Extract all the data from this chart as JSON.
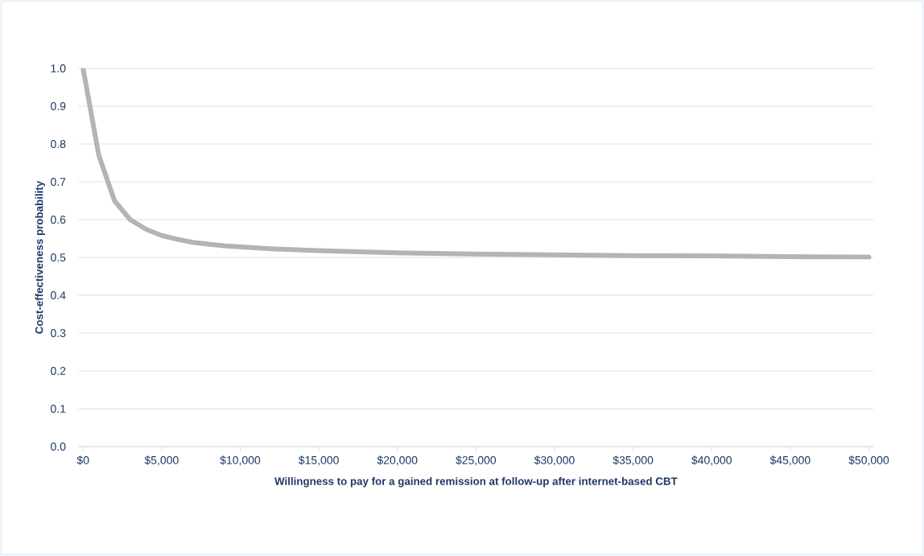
{
  "chart_data": {
    "type": "line",
    "xlabel": "Willingness to pay for a gained remission at follow-up after internet-based CBT",
    "ylabel": "Cost-effectiveness probability",
    "x": [
      0,
      1000,
      2000,
      3000,
      4000,
      5000,
      6000,
      7000,
      8000,
      9000,
      10000,
      12000,
      15000,
      20000,
      25000,
      30000,
      35000,
      40000,
      45000,
      50000
    ],
    "series": [
      {
        "color": "#b4b4b4",
        "values": [
          1.0,
          0.77,
          0.65,
          0.6,
          0.575,
          0.558,
          0.548,
          0.54,
          0.535,
          0.531,
          0.528,
          0.523,
          0.518,
          0.512,
          0.509,
          0.507,
          0.505,
          0.504,
          0.502,
          0.501
        ]
      }
    ],
    "xlim": [
      -300,
      50300
    ],
    "ylim": [
      0,
      1.0
    ],
    "xticks": [
      {
        "value": 0,
        "label": "$0"
      },
      {
        "value": 5000,
        "label": "$5,000"
      },
      {
        "value": 10000,
        "label": "$10,000"
      },
      {
        "value": 15000,
        "label": "$15,000"
      },
      {
        "value": 20000,
        "label": "$20,000"
      },
      {
        "value": 25000,
        "label": "$25,000"
      },
      {
        "value": 30000,
        "label": "$30,000"
      },
      {
        "value": 35000,
        "label": "$35,000"
      },
      {
        "value": 40000,
        "label": "$40,000"
      },
      {
        "value": 45000,
        "label": "$45,000"
      },
      {
        "value": 50000,
        "label": "$50,000"
      }
    ],
    "yticks": [
      {
        "value": 0,
        "label": "0.0"
      },
      {
        "value": 0.1,
        "label": "0.1"
      },
      {
        "value": 0.2,
        "label": "0.2"
      },
      {
        "value": 0.3,
        "label": "0.3"
      },
      {
        "value": 0.4,
        "label": "0.4"
      },
      {
        "value": 0.5,
        "label": "0.5"
      },
      {
        "value": 0.6,
        "label": "0.6"
      },
      {
        "value": 0.7,
        "label": "0.7"
      },
      {
        "value": 0.8,
        "label": "0.8"
      },
      {
        "value": 0.9,
        "label": "0.9"
      },
      {
        "value": 1.0,
        "label": "1.0"
      }
    ],
    "grid": "y",
    "marker": "none",
    "line_style": "solid"
  }
}
